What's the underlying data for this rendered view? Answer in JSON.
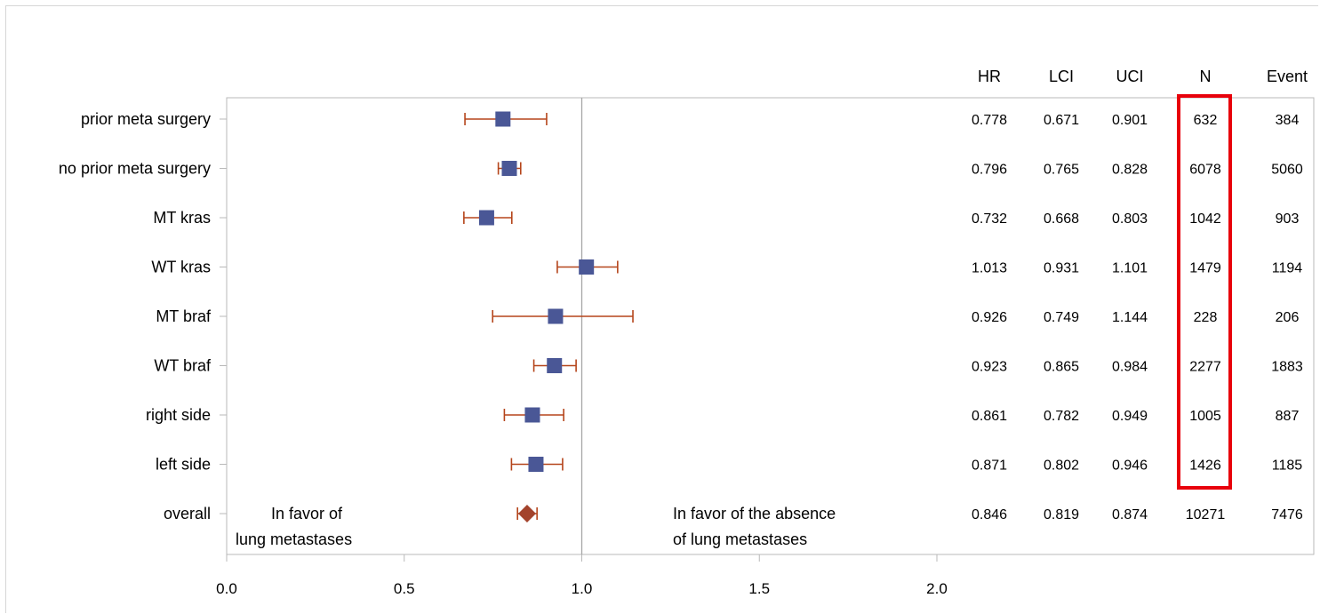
{
  "colors": {
    "marker": "#4a5796",
    "whisker": "#b5451b",
    "overall_marker": "#a3432c",
    "reference_line": "#a6a6a6",
    "plot_border": "#b9b9b9",
    "highlight_box": "#e8000b",
    "text": "#000000"
  },
  "chart_data": {
    "type": "scatter",
    "subtype": "forest",
    "title": "",
    "xlabel": "",
    "ylabel": "",
    "xlim": [
      0,
      2.5
    ],
    "xticks": [
      "0.0",
      "0.5",
      "1.0",
      "1.5",
      "2.0"
    ],
    "xtick_values": [
      0,
      0.5,
      1.0,
      1.5,
      2.0
    ],
    "reference_line_x": 1.0,
    "grid": false,
    "columns": [
      "HR",
      "LCI",
      "UCI",
      "N",
      "Event"
    ],
    "rows": [
      {
        "label": "prior meta surgery",
        "hr": 0.778,
        "lci": 0.671,
        "uci": 0.901,
        "n": 632,
        "event": 384,
        "hr_text": "0.778",
        "lci_text": "0.671",
        "uci_text": "0.901",
        "n_text": "632",
        "event_text": "384",
        "marker": "square"
      },
      {
        "label": "no prior meta surgery",
        "hr": 0.796,
        "lci": 0.765,
        "uci": 0.828,
        "n": 6078,
        "event": 5060,
        "hr_text": "0.796",
        "lci_text": "0.765",
        "uci_text": "0.828",
        "n_text": "6078",
        "event_text": "5060",
        "marker": "square"
      },
      {
        "label": "MT kras",
        "hr": 0.732,
        "lci": 0.668,
        "uci": 0.803,
        "n": 1042,
        "event": 903,
        "hr_text": "0.732",
        "lci_text": "0.668",
        "uci_text": "0.803",
        "n_text": "1042",
        "event_text": "903",
        "marker": "square"
      },
      {
        "label": "WT kras",
        "hr": 1.013,
        "lci": 0.931,
        "uci": 1.101,
        "n": 1479,
        "event": 1194,
        "hr_text": "1.013",
        "lci_text": "0.931",
        "uci_text": "1.101",
        "n_text": "1479",
        "event_text": "1194",
        "marker": "square"
      },
      {
        "label": "MT braf",
        "hr": 0.926,
        "lci": 0.749,
        "uci": 1.144,
        "n": 228,
        "event": 206,
        "hr_text": "0.926",
        "lci_text": "0.749",
        "uci_text": "1.144",
        "n_text": "228",
        "event_text": "206",
        "marker": "square"
      },
      {
        "label": "WT braf",
        "hr": 0.923,
        "lci": 0.865,
        "uci": 0.984,
        "n": 2277,
        "event": 1883,
        "hr_text": "0.923",
        "lci_text": "0.865",
        "uci_text": "0.984",
        "n_text": "2277",
        "event_text": "1883",
        "marker": "square"
      },
      {
        "label": "right side",
        "hr": 0.861,
        "lci": 0.782,
        "uci": 0.949,
        "n": 1005,
        "event": 887,
        "hr_text": "0.861",
        "lci_text": "0.782",
        "uci_text": "0.949",
        "n_text": "1005",
        "event_text": "887",
        "marker": "square"
      },
      {
        "label": "left side",
        "hr": 0.871,
        "lci": 0.802,
        "uci": 0.946,
        "n": 1426,
        "event": 1185,
        "hr_text": "0.871",
        "lci_text": "0.802",
        "uci_text": "0.946",
        "n_text": "1426",
        "event_text": "1185",
        "marker": "square"
      },
      {
        "label": "overall",
        "hr": 0.846,
        "lci": 0.819,
        "uci": 0.874,
        "n": 10271,
        "event": 7476,
        "hr_text": "0.846",
        "lci_text": "0.819",
        "uci_text": "0.874",
        "n_text": "10271",
        "event_text": "7476",
        "marker": "diamond"
      }
    ],
    "annotations": {
      "left": [
        "In favor of",
        "lung metastases"
      ],
      "right": [
        "In favor of the absence",
        "of lung metastases"
      ]
    },
    "highlighted_column": "N"
  }
}
